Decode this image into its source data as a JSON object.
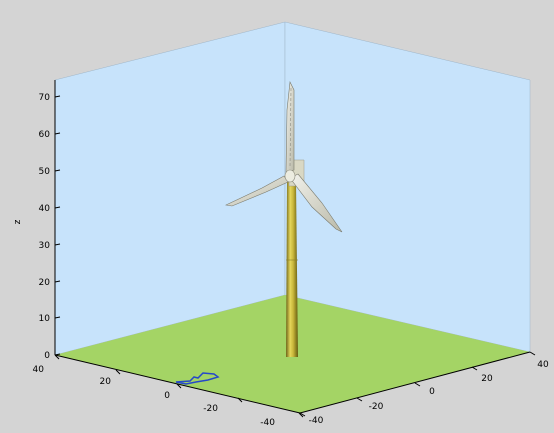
{
  "figure": {
    "background_color": "#d4d4d4",
    "wall_color": "#c7e3fb",
    "floor_color": "#a4d465",
    "tower_color": "#c7b63a",
    "blade_color": "#e9e9e2"
  },
  "plot": {
    "z_axis_label": "z",
    "z_ticks": [
      "0",
      "10",
      "20",
      "30",
      "40",
      "50",
      "60",
      "70"
    ],
    "x_ticks": [
      "40",
      "20",
      "0",
      "-20",
      "-40"
    ],
    "y_ticks": [
      "-40",
      "-20",
      "0",
      "20",
      "40"
    ]
  }
}
